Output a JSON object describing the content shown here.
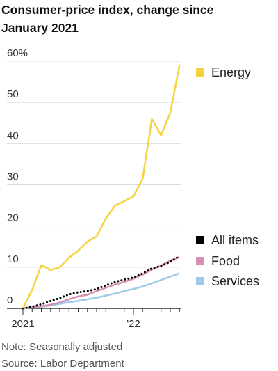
{
  "chart_data": {
    "type": "line",
    "title": "Consumer-price index, change since January 2021",
    "categories": [
      "2021",
      null,
      null,
      null,
      null,
      null,
      null,
      null,
      null,
      null,
      null,
      null,
      "'22",
      null,
      null,
      null,
      null,
      null
    ],
    "series": [
      {
        "name": "Energy",
        "color": "#f5d33f",
        "style": "solid",
        "values": [
          0,
          4.5,
          10.5,
          9.3,
          10,
          12.3,
          14,
          16.2,
          17.5,
          21.8,
          25,
          26,
          27.2,
          31.5,
          46,
          42,
          47.5,
          59
        ]
      },
      {
        "name": "All items",
        "color": "#000000",
        "style": "dotted",
        "values": [
          0,
          0.4,
          1.0,
          1.8,
          2.5,
          3.4,
          3.9,
          4.2,
          4.7,
          5.6,
          6.4,
          7.0,
          7.5,
          8.5,
          9.7,
          10.3,
          11.3,
          12.7
        ]
      },
      {
        "name": "Food",
        "color": "#d68fb0",
        "style": "solid",
        "values": [
          0,
          0.3,
          0.5,
          0.9,
          1.4,
          2.2,
          2.9,
          3.3,
          4.2,
          5.0,
          5.8,
          6.4,
          7.2,
          8.2,
          9.4,
          10.4,
          11.6,
          12.5
        ]
      },
      {
        "name": "Services",
        "color": "#9ccbea",
        "style": "solid",
        "values": [
          0,
          0.2,
          0.4,
          0.7,
          1.1,
          1.5,
          1.8,
          2.2,
          2.6,
          3.1,
          3.6,
          4.2,
          4.7,
          5.3,
          6.1,
          6.9,
          7.7,
          8.5
        ]
      }
    ],
    "ylim": [
      0,
      60
    ],
    "yticks": [
      0,
      10,
      20,
      30,
      40,
      50,
      {
        "value": 60,
        "label": "60%"
      }
    ],
    "grid": true,
    "legend": "right",
    "note": "Note: Seasonally adjusted",
    "source": "Source: Labor Department"
  }
}
